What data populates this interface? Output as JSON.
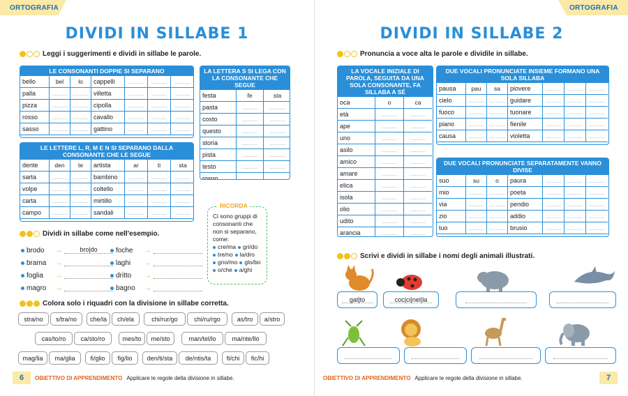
{
  "left": {
    "tag": "ORTOGRAFIA",
    "title": "DIVIDI IN SILLABE 1",
    "instr1": "Leggi i suggerimenti e dividi in sillabe le parole.",
    "box_doppie": {
      "header": "LE CONSONANTI DOPPIE SI SEPARANO",
      "rows": [
        [
          "bello",
          "bel",
          "lo",
          "cappelli",
          "",
          "",
          ""
        ],
        [
          "palla",
          "",
          "",
          "villetta",
          "",
          "",
          ""
        ],
        [
          "pizza",
          "",
          "",
          "cipolla",
          "",
          "",
          ""
        ],
        [
          "rosso",
          "",
          "",
          "cavallo",
          "",
          "",
          ""
        ],
        [
          "sasso",
          "",
          "",
          "gattino",
          "",
          "",
          ""
        ]
      ]
    },
    "box_s": {
      "header": "LA LETTERA S SI LEGA CON LA CONSONANTE CHE SEGUE",
      "rows": [
        [
          "festa",
          "fe",
          "sta"
        ],
        [
          "pasta",
          "",
          ""
        ],
        [
          "costo",
          "",
          ""
        ],
        [
          "questo",
          "",
          ""
        ],
        [
          "storia",
          "",
          ""
        ],
        [
          "pista",
          "",
          ""
        ],
        [
          "testo",
          "",
          ""
        ],
        [
          "rospo",
          "",
          ""
        ]
      ]
    },
    "box_lrmn": {
      "header": "LE LETTERE L, R, M E N SI SEPARANO DALLA CONSONANTE CHE LE SEGUE",
      "rows": [
        [
          "dente",
          "den",
          "te",
          "artista",
          "ar",
          "ti",
          "sta"
        ],
        [
          "sarta",
          "",
          "",
          "bambino",
          "",
          "",
          ""
        ],
        [
          "volpe",
          "",
          "",
          "coltello",
          "",
          "",
          ""
        ],
        [
          "carta",
          "",
          "",
          "mirtillo",
          "",
          "",
          ""
        ],
        [
          "campo",
          "",
          "",
          "sandali",
          "",
          "",
          ""
        ]
      ]
    },
    "ricorda": {
      "title": "RICORDA",
      "text": "Ci sono gruppi di consonanti che non si separano, come:",
      "lines": [
        [
          "cre/ma",
          "gri/do"
        ],
        [
          "tre/no",
          "la/dro"
        ],
        [
          "gno/mo",
          "glo/bo"
        ],
        [
          "o/che",
          "a/ghi"
        ]
      ]
    },
    "instr2": "Dividi in sillabe come nell'esempio.",
    "ex_col1": [
      {
        "word": "brodo",
        "answer": "bro|do"
      },
      {
        "word": "brama",
        "answer": ""
      },
      {
        "word": "foglia",
        "answer": ""
      },
      {
        "word": "magro",
        "answer": ""
      }
    ],
    "ex_col2": [
      {
        "word": "foche",
        "answer": ""
      },
      {
        "word": "laghi",
        "answer": ""
      },
      {
        "word": "dritto",
        "answer": ""
      },
      {
        "word": "bagno",
        "answer": ""
      }
    ],
    "instr3": "Colora solo i riquadri con la divisione in sillabe corretta.",
    "pills_row1": [
      "stra/no",
      "s/tra/no",
      "che/la",
      "ch/ela",
      "chi/rur/go",
      "chi/ru/rgo",
      "as/tro",
      "a/stro"
    ],
    "pills_row2": [
      "cas/to/ro",
      "ca/sto/ro",
      "mes/to",
      "me/sto",
      "man/tel/lo",
      "ma/nte/llo"
    ],
    "pills_row3": [
      "mag/lia",
      "ma/glia",
      "fi/glio",
      "fig/lio",
      "den/ti/sta",
      "de/ntis/ta",
      "fi/chi",
      "fic/hi"
    ],
    "page_num": "6",
    "footer_label": "OBIETTIVO DI APPRENDIMENTO",
    "footer_text": "Applicare le regole della divisione in sillabe."
  },
  "right": {
    "tag": "ORTOGRAFIA",
    "title": "DIVIDI IN SILLABE 2",
    "instr1": "Pronuncia a voce alta le parole e dividile in sillabe.",
    "box_vocale": {
      "header": "LA VOCALE INIZIALE DI PAROLA, SEGUITA DA UNA SOLA CONSONANTE, FA SILLABA A SÉ",
      "rows": [
        [
          "oca",
          "o",
          "ca"
        ],
        [
          "età",
          "",
          ""
        ],
        [
          "ape",
          "",
          ""
        ],
        [
          "uno",
          "",
          ""
        ],
        [
          "asilo",
          "",
          ""
        ],
        [
          "amico",
          "",
          ""
        ],
        [
          "amare",
          "",
          ""
        ],
        [
          "elica",
          "",
          ""
        ],
        [
          "isola",
          "",
          ""
        ],
        [
          "olio",
          "",
          ""
        ],
        [
          "udito",
          "",
          ""
        ],
        [
          "arancia",
          "",
          ""
        ]
      ]
    },
    "box_insieme": {
      "header": "DUE VOCALI PRONUNCIATE INSIEME FORMANO UNA SOLA SILLABA",
      "rows": [
        [
          "pausa",
          "pau",
          "sa",
          "piovere",
          "",
          "",
          ""
        ],
        [
          "cielo",
          "",
          "",
          "guidare",
          "",
          "",
          ""
        ],
        [
          "fuoco",
          "",
          "",
          "tuonare",
          "",
          "",
          ""
        ],
        [
          "piano",
          "",
          "",
          "fienile",
          "",
          "",
          ""
        ],
        [
          "causa",
          "",
          "",
          "violetta",
          "",
          "",
          ""
        ]
      ]
    },
    "box_divise": {
      "header": "DUE VOCALI PRONUNCIATE SEPARATAMENTE VANNO DIVISE",
      "rows": [
        [
          "suo",
          "su",
          "o",
          "paura",
          "",
          "",
          ""
        ],
        [
          "mio",
          "",
          "",
          "poeta",
          "",
          "",
          ""
        ],
        [
          "via",
          "",
          "",
          "pendio",
          "",
          "",
          ""
        ],
        [
          "zio",
          "",
          "",
          "addio",
          "",
          "",
          ""
        ],
        [
          "tuo",
          "",
          "",
          "brusio",
          "",
          "",
          ""
        ]
      ]
    },
    "instr2": "Scrivi e dividi in sillabe i nomi degli animali illustrati.",
    "animals_row1": [
      "gat|to",
      "coc|ci|nel|la",
      "",
      ""
    ],
    "animals_row2": [
      "",
      "",
      "",
      ""
    ],
    "page_num": "7",
    "footer_label": "OBIETTIVO DI APPRENDIMENTO",
    "footer_text": "Applicare le regole della divisione in sillabe."
  }
}
